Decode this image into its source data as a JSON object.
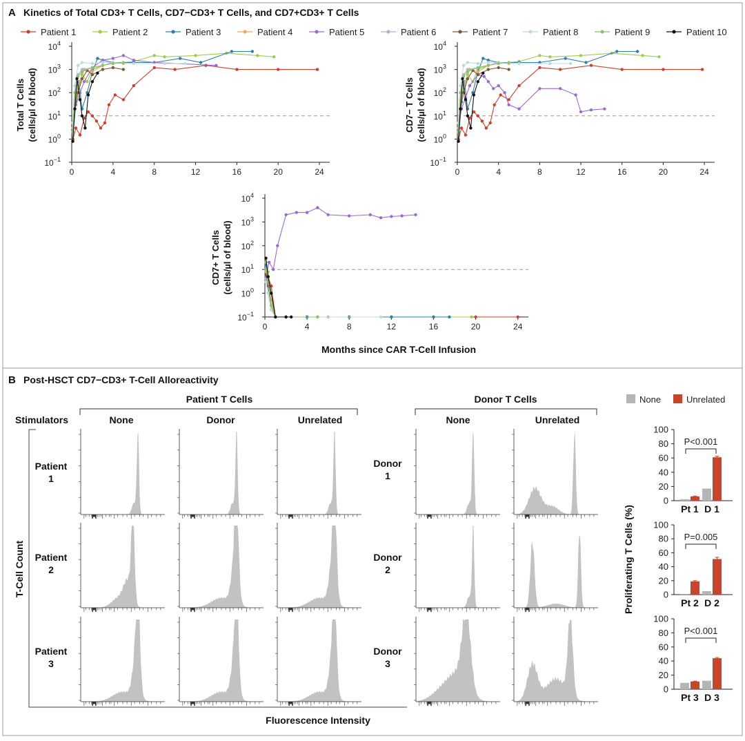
{
  "panel_a": {
    "letter": "A",
    "title": "Kinetics of Total CD3+ T Cells, CD7−CD3+ T Cells, and CD7+CD3+ T Cells",
    "xlabel": "Months since CAR T-Cell Infusion"
  },
  "panel_b": {
    "letter": "B",
    "title": "Post-HSCT CD7−CD3+ T-Cell Alloreactivity",
    "group_patient": "Patient T Cells",
    "group_donor": "Donor T Cells",
    "stimulators_label": "Stimulators",
    "col_none": "None",
    "col_donor": "Donor",
    "col_unrelated": "Unrelated",
    "rows_patient": [
      [
        "Patient",
        "1"
      ],
      [
        "Patient",
        "2"
      ],
      [
        "Patient",
        "3"
      ]
    ],
    "rows_donor": [
      [
        "Donor",
        "1"
      ],
      [
        "Donor",
        "2"
      ],
      [
        "Donor",
        "3"
      ]
    ],
    "ylabel": "T-Cell Count",
    "xlabel": "Fluorescence Intensity"
  },
  "chart_data": [
    {
      "type": "line",
      "title": "",
      "ylabel": [
        "Total T Cells",
        "(cells/µl of blood)"
      ],
      "xlabel": "",
      "y_scale": "log10",
      "ylim_exp": [
        -1,
        4
      ],
      "xlim": [
        0,
        25
      ],
      "xticks": [
        0,
        4,
        8,
        12,
        16,
        20,
        24
      ],
      "threshold": 10,
      "series": [
        {
          "name": "Patient 1",
          "color": "#c8402f",
          "x": [
            0.1,
            0.4,
            0.8,
            1.2,
            1.6,
            2.0,
            2.4,
            2.8,
            3.2,
            3.6,
            4.2,
            5,
            6,
            8,
            10,
            13,
            16,
            20,
            23.8
          ],
          "y": [
            0.9,
            3,
            1.5,
            8,
            15,
            10,
            6,
            3,
            5,
            30,
            80,
            50,
            200,
            1200,
            1000,
            1500,
            1000,
            1000,
            1000
          ]
        },
        {
          "name": "Patient 2",
          "color": "#9dcc4a",
          "x": [
            0.1,
            0.3,
            0.6,
            1,
            1.5,
            2,
            3,
            4,
            6,
            8,
            9,
            12,
            15,
            18,
            19.6
          ],
          "y": [
            5,
            30,
            200,
            600,
            300,
            1000,
            1500,
            1800,
            2200,
            4000,
            3500,
            4000,
            5000,
            4000,
            3500
          ]
        },
        {
          "name": "Patient 3",
          "color": "#2f7fa6",
          "x": [
            0.1,
            0.4,
            0.7,
            1,
            1.5,
            2,
            2.5,
            3,
            4,
            6,
            8,
            10.5,
            12.5,
            15.5,
            17.5
          ],
          "y": [
            1,
            40,
            300,
            20,
            100,
            800,
            3000,
            2500,
            2000,
            2000,
            2000,
            3000,
            2000,
            6000,
            6000
          ]
        },
        {
          "name": "Patient 4",
          "color": "#e8a86a",
          "x": [
            0.1,
            0.4,
            0.8,
            1.2,
            2,
            3,
            4,
            5
          ],
          "y": [
            2,
            60,
            300,
            1000,
            800,
            1500,
            2000,
            1800
          ]
        },
        {
          "name": "Patient 5",
          "color": "#9a6ad0",
          "x": [
            0.1,
            0.4,
            0.8,
            1.2,
            2,
            3,
            4,
            5,
            6,
            8,
            14
          ],
          "y": [
            5,
            30,
            100,
            300,
            1200,
            2500,
            3000,
            4000,
            2500,
            2000,
            1500
          ]
        },
        {
          "name": "Patient 6",
          "color": "#a8b8cc",
          "x": [
            0.1,
            0.3,
            0.6,
            1,
            2,
            3,
            4,
            6
          ],
          "y": [
            3,
            50,
            600,
            1000,
            1200,
            1500,
            2000,
            1800
          ]
        },
        {
          "name": "Patient 7",
          "color": "#7a5a3a",
          "x": [
            0.1,
            0.3,
            0.6,
            1,
            1.5,
            2,
            3,
            4,
            5
          ],
          "y": [
            1,
            20,
            100,
            400,
            900,
            600,
            1000,
            1200,
            1000
          ]
        },
        {
          "name": "Patient 8",
          "color": "#c0d8e0",
          "x": [
            0.1,
            0.3,
            0.6,
            1,
            2,
            3,
            4,
            6,
            9,
            11
          ],
          "y": [
            5,
            200,
            1500,
            2000,
            1800,
            2000,
            2000,
            1800,
            1800,
            1800
          ]
        },
        {
          "name": "Patient 9",
          "color": "#8cc46a",
          "x": [
            0.1,
            0.3,
            0.6,
            1,
            2,
            3,
            4,
            5
          ],
          "y": [
            2,
            100,
            500,
            800,
            1200,
            1500,
            1800,
            2000
          ]
        },
        {
          "name": "Patient 10",
          "color": "#111111",
          "x": [
            0.1,
            0.3,
            0.5,
            0.8,
            1,
            1.3,
            1.6,
            2,
            2.5
          ],
          "y": [
            0.8,
            20,
            400,
            50,
            10,
            3,
            80,
            300,
            700
          ]
        }
      ]
    },
    {
      "type": "line",
      "title": "",
      "ylabel": [
        "CD7− T Cells",
        "(cells/µl of blood)"
      ],
      "xlabel": "",
      "y_scale": "log10",
      "ylim_exp": [
        -1,
        4
      ],
      "xlim": [
        0,
        25
      ],
      "xticks": [
        0,
        4,
        8,
        12,
        16,
        20,
        24
      ],
      "threshold": 10,
      "series": [
        {
          "name": "Patient 1",
          "color": "#c8402f",
          "x": [
            0.1,
            0.4,
            0.8,
            1.2,
            1.6,
            2.0,
            2.4,
            2.8,
            3.2,
            3.6,
            4.2,
            5,
            6,
            8,
            10,
            13,
            16,
            20,
            23.8
          ],
          "y": [
            0.9,
            3,
            1.5,
            8,
            15,
            10,
            6,
            3,
            5,
            30,
            80,
            50,
            200,
            1200,
            1000,
            1500,
            1000,
            1000,
            1000
          ]
        },
        {
          "name": "Patient 2",
          "color": "#9dcc4a",
          "x": [
            0.1,
            0.3,
            0.6,
            1,
            1.5,
            2,
            3,
            4,
            6,
            8,
            9,
            12,
            15,
            18,
            19.6
          ],
          "y": [
            5,
            30,
            200,
            600,
            300,
            1000,
            1500,
            1800,
            2200,
            4000,
            3500,
            4000,
            5000,
            4000,
            3500
          ]
        },
        {
          "name": "Patient 3",
          "color": "#2f7fa6",
          "x": [
            0.1,
            0.4,
            0.7,
            1,
            1.5,
            2,
            2.5,
            3,
            4,
            6,
            8,
            10.5,
            12.5,
            15.5,
            17.5
          ],
          "y": [
            1,
            40,
            300,
            20,
            100,
            800,
            3000,
            2500,
            2000,
            2000,
            2000,
            3000,
            2000,
            6000,
            6000
          ]
        },
        {
          "name": "Patient 4",
          "color": "#e8a86a",
          "x": [
            0.1,
            0.4,
            0.8,
            1.2,
            2,
            3,
            4,
            5
          ],
          "y": [
            2,
            60,
            300,
            1000,
            800,
            1500,
            2000,
            1800
          ]
        },
        {
          "name": "Patient 5",
          "color": "#9a6ad0",
          "x": [
            0.1,
            0.4,
            0.8,
            1.2,
            2,
            2.6,
            3,
            3.5,
            4,
            4.6,
            5,
            6,
            8,
            10,
            11.5,
            12,
            13,
            14.3
          ],
          "y": [
            3,
            20,
            60,
            200,
            600,
            500,
            300,
            150,
            200,
            100,
            30,
            20,
            150,
            150,
            80,
            15,
            18,
            20
          ]
        },
        {
          "name": "Patient 6",
          "color": "#a8b8cc",
          "x": [
            0.1,
            0.3,
            0.6,
            1,
            2,
            3,
            4,
            6
          ],
          "y": [
            3,
            50,
            600,
            1000,
            1200,
            1500,
            2000,
            1800
          ]
        },
        {
          "name": "Patient 7",
          "color": "#7a5a3a",
          "x": [
            0.1,
            0.3,
            0.6,
            1,
            1.5,
            2,
            3,
            4,
            5
          ],
          "y": [
            1,
            20,
            100,
            400,
            900,
            600,
            1000,
            1200,
            1000
          ]
        },
        {
          "name": "Patient 8",
          "color": "#c0d8e0",
          "x": [
            0.1,
            0.3,
            0.6,
            1,
            2,
            3,
            4,
            6,
            9,
            11
          ],
          "y": [
            5,
            200,
            1500,
            2000,
            1800,
            2000,
            2000,
            1800,
            1800,
            1800
          ]
        },
        {
          "name": "Patient 9",
          "color": "#8cc46a",
          "x": [
            0.1,
            0.3,
            0.6,
            1,
            2,
            3,
            4,
            5
          ],
          "y": [
            2,
            100,
            500,
            800,
            1200,
            1500,
            1800,
            2000
          ]
        },
        {
          "name": "Patient 10",
          "color": "#111111",
          "x": [
            0.1,
            0.3,
            0.5,
            0.8,
            1,
            1.3,
            1.6,
            2,
            2.5
          ],
          "y": [
            0.8,
            20,
            400,
            50,
            10,
            3,
            80,
            300,
            700
          ]
        }
      ]
    },
    {
      "type": "line",
      "title": "",
      "ylabel": [
        "CD7+ T Cells",
        "(cells/µl of blood)"
      ],
      "xlabel": "Months since CAR T-Cell Infusion",
      "y_scale": "log10",
      "ylim_exp": [
        -1,
        4
      ],
      "xlim": [
        0,
        25
      ],
      "xticks": [
        0,
        4,
        8,
        12,
        16,
        20,
        24
      ],
      "threshold": 10,
      "series": [
        {
          "name": "Patient 1",
          "color": "#c8402f",
          "x": [
            0.1,
            0.3,
            0.6,
            1,
            2,
            4,
            8,
            12,
            16,
            20,
            24
          ],
          "y": [
            10,
            5,
            2,
            0.1,
            0.1,
            0.1,
            0.1,
            0.1,
            0.1,
            0.1,
            0.1
          ]
        },
        {
          "name": "Patient 2",
          "color": "#9dcc4a",
          "x": [
            0.1,
            0.3,
            0.6,
            1,
            2,
            4,
            8,
            12,
            16,
            19.6
          ],
          "y": [
            20,
            8,
            0.3,
            0.1,
            0.1,
            0.1,
            0.1,
            0.1,
            0.1,
            0.1
          ]
        },
        {
          "name": "Patient 3",
          "color": "#2f7fa6",
          "x": [
            0.1,
            0.3,
            0.6,
            1,
            2,
            4,
            8,
            12,
            16,
            17.5
          ],
          "y": [
            15,
            5,
            0.2,
            0.1,
            0.1,
            0.1,
            0.1,
            0.1,
            0.1,
            0.1
          ]
        },
        {
          "name": "Patient 4",
          "color": "#e8a86a",
          "x": [
            0.1,
            0.3,
            0.6,
            1,
            2,
            5
          ],
          "y": [
            8,
            3,
            0.5,
            0.1,
            0.1,
            0.1
          ]
        },
        {
          "name": "Patient 5",
          "color": "#9a6ad0",
          "x": [
            0.1,
            0.4,
            0.8,
            1.2,
            2,
            3,
            4,
            5,
            6,
            8,
            10,
            11,
            12,
            13,
            14.3
          ],
          "y": [
            5,
            20,
            10,
            100,
            2000,
            2500,
            2500,
            4000,
            2000,
            1800,
            2000,
            1500,
            1700,
            1800,
            2000
          ]
        },
        {
          "name": "Patient 6",
          "color": "#a8b8cc",
          "x": [
            0.1,
            0.3,
            0.6,
            1,
            2,
            6
          ],
          "y": [
            4,
            1,
            0.2,
            0.1,
            0.1,
            0.1
          ]
        },
        {
          "name": "Patient 7",
          "color": "#7a5a3a",
          "x": [
            0.1,
            0.3,
            0.6,
            1,
            2,
            5
          ],
          "y": [
            6,
            2,
            0.3,
            0.1,
            0.1,
            0.1
          ]
        },
        {
          "name": "Patient 8",
          "color": "#c0d8e0",
          "x": [
            0.1,
            0.3,
            0.6,
            1,
            2,
            11
          ],
          "y": [
            3,
            1,
            0.2,
            0.1,
            0.1,
            0.1
          ]
        },
        {
          "name": "Patient 9",
          "color": "#8cc46a",
          "x": [
            0.1,
            0.3,
            0.6,
            1,
            2,
            5
          ],
          "y": [
            10,
            4,
            0.3,
            0.1,
            0.1,
            0.1
          ]
        },
        {
          "name": "Patient 10",
          "color": "#111111",
          "x": [
            0.1,
            0.3,
            0.6,
            1,
            2,
            2.5
          ],
          "y": [
            30,
            5,
            1,
            0.1,
            0.1,
            0.1
          ]
        }
      ]
    },
    {
      "type": "bar",
      "title": "P<0.001",
      "categories": [
        "Pt 1",
        "D 1"
      ],
      "series": [
        {
          "name": "None",
          "values": [
            2,
            17
          ]
        },
        {
          "name": "Unrelated",
          "values": [
            6,
            61
          ]
        }
      ],
      "errors": [
        0.5,
        1.5
      ],
      "ylim": [
        0,
        100
      ],
      "yticks": [
        0,
        20,
        40,
        60,
        80,
        100
      ]
    },
    {
      "type": "bar",
      "title": "P=0.005",
      "categories": [
        "Pt 2",
        "D 2"
      ],
      "series": [
        {
          "name": "None",
          "values": [
            1,
            5
          ]
        },
        {
          "name": "Unrelated",
          "values": [
            19,
            51
          ]
        }
      ],
      "errors": [
        1,
        2.5
      ],
      "ylim": [
        0,
        100
      ],
      "yticks": [
        0,
        20,
        40,
        60,
        80,
        100
      ]
    },
    {
      "type": "bar",
      "title": "P<0.001",
      "categories": [
        "Pt 3",
        "D 3"
      ],
      "series": [
        {
          "name": "None",
          "values": [
            9,
            12
          ]
        },
        {
          "name": "Unrelated",
          "values": [
            11,
            44
          ]
        }
      ],
      "errors": [
        0.5,
        1
      ],
      "ylim": [
        0,
        100
      ],
      "yticks": [
        0,
        20,
        40,
        60,
        80,
        100
      ]
    }
  ],
  "bar_legend": [
    {
      "name": "None",
      "color": "#b5b5b5"
    },
    {
      "name": "Unrelated",
      "color": "#c8452b"
    }
  ],
  "bar_ylabel": "Proliferating T Cells (%)",
  "histogram_fill": "#c2c2c2"
}
